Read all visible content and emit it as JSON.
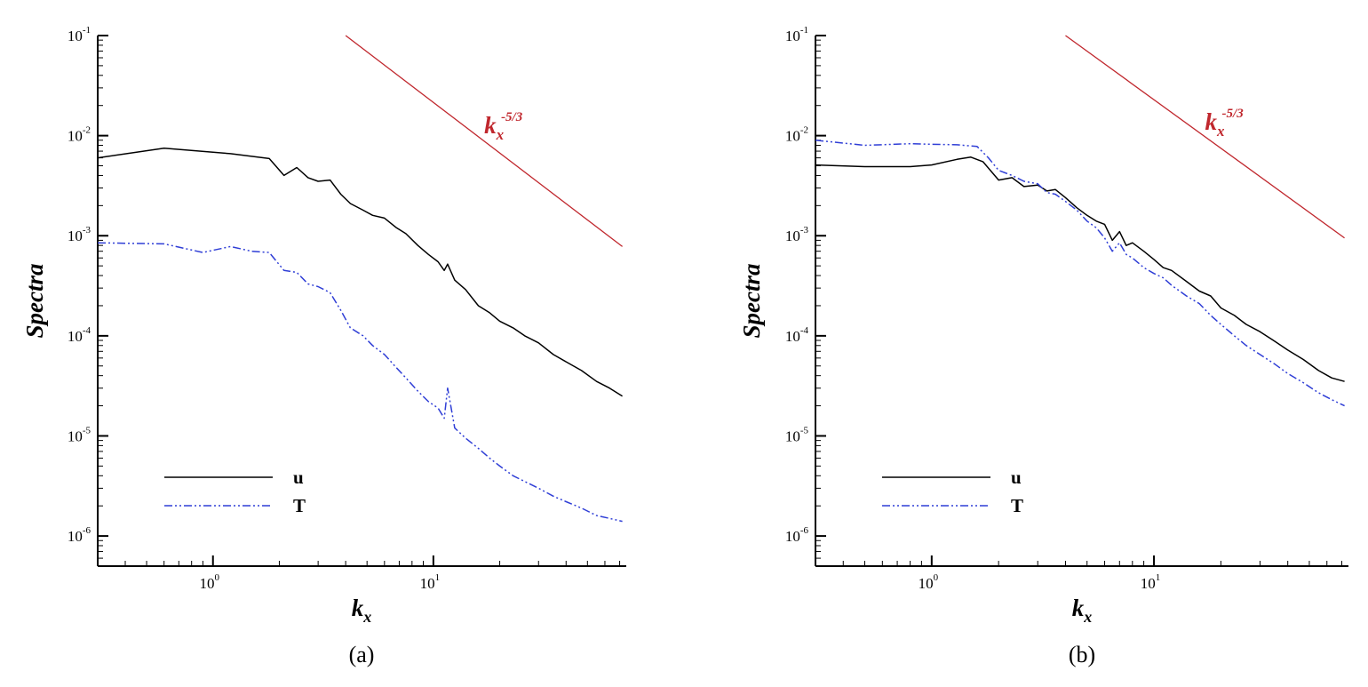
{
  "chart_data": [
    {
      "type": "line",
      "panel_label": "(a)",
      "xlabel": "k",
      "xlabel_sub": "x",
      "ylabel": "Spectra",
      "xscale": "log",
      "yscale": "log",
      "xlim": [
        0.3,
        75
      ],
      "ylim": [
        5e-07,
        0.1
      ],
      "x_ticks": [
        {
          "value": 1,
          "base": "10",
          "exp": "0"
        },
        {
          "value": 10,
          "base": "10",
          "exp": "1"
        }
      ],
      "y_ticks": [
        {
          "value": 1e-06,
          "base": "10",
          "exp": "-6"
        },
        {
          "value": 1e-05,
          "base": "10",
          "exp": "-5"
        },
        {
          "value": 0.0001,
          "base": "10",
          "exp": "-4"
        },
        {
          "value": 0.001,
          "base": "10",
          "exp": "-3"
        },
        {
          "value": 0.01,
          "base": "10",
          "exp": "-2"
        },
        {
          "value": 0.1,
          "base": "10",
          "exp": "-1"
        }
      ],
      "legend_position": "bottom-left",
      "reference_line": {
        "label_base": "k",
        "label_sub": "x",
        "label_sup": "-5/3",
        "x": [
          4.0,
          72
        ],
        "y": [
          0.1,
          0.00078
        ],
        "color": "#c0272d"
      },
      "series": [
        {
          "name": "u",
          "color": "#000000",
          "dash": "",
          "x": [
            0.3,
            0.6,
            1.2,
            1.8,
            2.1,
            2.4,
            2.7,
            3.0,
            3.4,
            3.8,
            4.2,
            4.8,
            5.3,
            6.0,
            6.8,
            7.5,
            8.5,
            9.5,
            10.5,
            11.2,
            11.6,
            12.5,
            14,
            16,
            18,
            20,
            23,
            26,
            30,
            35,
            40,
            47,
            55,
            63,
            72
          ],
          "y": [
            0.006,
            0.0075,
            0.0066,
            0.0059,
            0.004,
            0.0048,
            0.0038,
            0.0035,
            0.0036,
            0.0026,
            0.0021,
            0.0018,
            0.0016,
            0.0015,
            0.0012,
            0.00105,
            0.0008,
            0.00065,
            0.00055,
            0.00045,
            0.00052,
            0.00036,
            0.00029,
            0.0002,
            0.00017,
            0.00014,
            0.00012,
            0.0001,
            8.5e-05,
            6.5e-05,
            5.5e-05,
            4.5e-05,
            3.5e-05,
            3e-05,
            2.5e-05
          ]
        },
        {
          "name": "T",
          "color": "#2f3ed6",
          "dash": "9,3,2,3,2,3",
          "x": [
            0.3,
            0.6,
            0.9,
            1.2,
            1.5,
            1.8,
            2.1,
            2.4,
            2.7,
            3.0,
            3.4,
            3.8,
            4.2,
            4.8,
            5.3,
            6.0,
            6.8,
            7.5,
            8.5,
            9.5,
            10.5,
            11.2,
            11.6,
            12.5,
            14,
            16,
            18,
            20,
            23,
            26,
            30,
            35,
            40,
            47,
            55,
            63,
            72
          ],
          "y": [
            0.00085,
            0.00083,
            0.00068,
            0.00078,
            0.0007,
            0.00068,
            0.00045,
            0.00043,
            0.00033,
            0.00031,
            0.00027,
            0.00018,
            0.00012,
            0.0001,
            8e-05,
            6.5e-05,
            4.8e-05,
            3.8e-05,
            2.8e-05,
            2.2e-05,
            1.9e-05,
            1.5e-05,
            3e-05,
            1.2e-05,
            9.5e-06,
            7.5e-06,
            6e-06,
            5e-06,
            4e-06,
            3.5e-06,
            3e-06,
            2.5e-06,
            2.2e-06,
            1.9e-06,
            1.6e-06,
            1.5e-06,
            1.4e-06
          ]
        }
      ]
    },
    {
      "type": "line",
      "panel_label": "(b)",
      "xlabel": "k",
      "xlabel_sub": "x",
      "ylabel": "Spectra",
      "xscale": "log",
      "yscale": "log",
      "xlim": [
        0.3,
        75
      ],
      "ylim": [
        5e-07,
        0.1
      ],
      "x_ticks": [
        {
          "value": 1,
          "base": "10",
          "exp": "0"
        },
        {
          "value": 10,
          "base": "10",
          "exp": "1"
        }
      ],
      "y_ticks": [
        {
          "value": 1e-06,
          "base": "10",
          "exp": "-6"
        },
        {
          "value": 1e-05,
          "base": "10",
          "exp": "-5"
        },
        {
          "value": 0.0001,
          "base": "10",
          "exp": "-4"
        },
        {
          "value": 0.001,
          "base": "10",
          "exp": "-3"
        },
        {
          "value": 0.01,
          "base": "10",
          "exp": "-2"
        },
        {
          "value": 0.1,
          "base": "10",
          "exp": "-1"
        }
      ],
      "legend_position": "bottom-left",
      "reference_line": {
        "label_base": "k",
        "label_sub": "x",
        "label_sup": "-5/3",
        "x": [
          4.0,
          72
        ],
        "y": [
          0.1,
          0.00095
        ],
        "color": "#c0272d"
      },
      "series": [
        {
          "name": "u",
          "color": "#000000",
          "dash": "",
          "x": [
            0.3,
            0.5,
            0.8,
            1.0,
            1.3,
            1.5,
            1.7,
            2.0,
            2.3,
            2.6,
            3.0,
            3.3,
            3.6,
            4.0,
            4.5,
            5.0,
            5.5,
            6.0,
            6.5,
            7.0,
            7.5,
            8.0,
            9.0,
            10,
            11,
            12,
            14,
            16,
            18,
            20,
            23,
            26,
            30,
            35,
            40,
            47,
            55,
            63,
            72
          ],
          "y": [
            0.0051,
            0.0049,
            0.0049,
            0.0051,
            0.0058,
            0.0061,
            0.0055,
            0.0036,
            0.0038,
            0.0031,
            0.0032,
            0.0028,
            0.0029,
            0.0024,
            0.0019,
            0.0016,
            0.0014,
            0.0013,
            0.0009,
            0.0011,
            0.0008,
            0.00085,
            0.0007,
            0.00058,
            0.00048,
            0.00045,
            0.00035,
            0.00028,
            0.00025,
            0.00019,
            0.00016,
            0.00013,
            0.00011,
            8.8e-05,
            7.2e-05,
            5.8e-05,
            4.5e-05,
            3.8e-05,
            3.5e-05
          ]
        },
        {
          "name": "T",
          "color": "#2f3ed6",
          "dash": "9,3,2,3,2,3",
          "x": [
            0.3,
            0.5,
            0.8,
            1.0,
            1.3,
            1.6,
            1.8,
            2.0,
            2.3,
            2.6,
            3.0,
            3.3,
            3.6,
            4.0,
            4.5,
            5.0,
            5.5,
            6.0,
            6.5,
            7.0,
            7.5,
            8.0,
            9.0,
            10,
            11,
            12,
            14,
            16,
            18,
            20,
            23,
            26,
            30,
            35,
            40,
            47,
            55,
            63,
            72
          ],
          "y": [
            0.009,
            0.008,
            0.0083,
            0.0082,
            0.0081,
            0.0078,
            0.006,
            0.0045,
            0.004,
            0.0035,
            0.0033,
            0.0027,
            0.0026,
            0.0022,
            0.0018,
            0.0014,
            0.0012,
            0.00095,
            0.0007,
            0.00085,
            0.00065,
            0.0006,
            0.00048,
            0.00042,
            0.00038,
            0.00032,
            0.00025,
            0.00021,
            0.00016,
            0.00013,
            0.0001,
            8e-05,
            6.5e-05,
            5.2e-05,
            4.2e-05,
            3.4e-05,
            2.7e-05,
            2.3e-05,
            2e-05
          ]
        }
      ]
    }
  ]
}
